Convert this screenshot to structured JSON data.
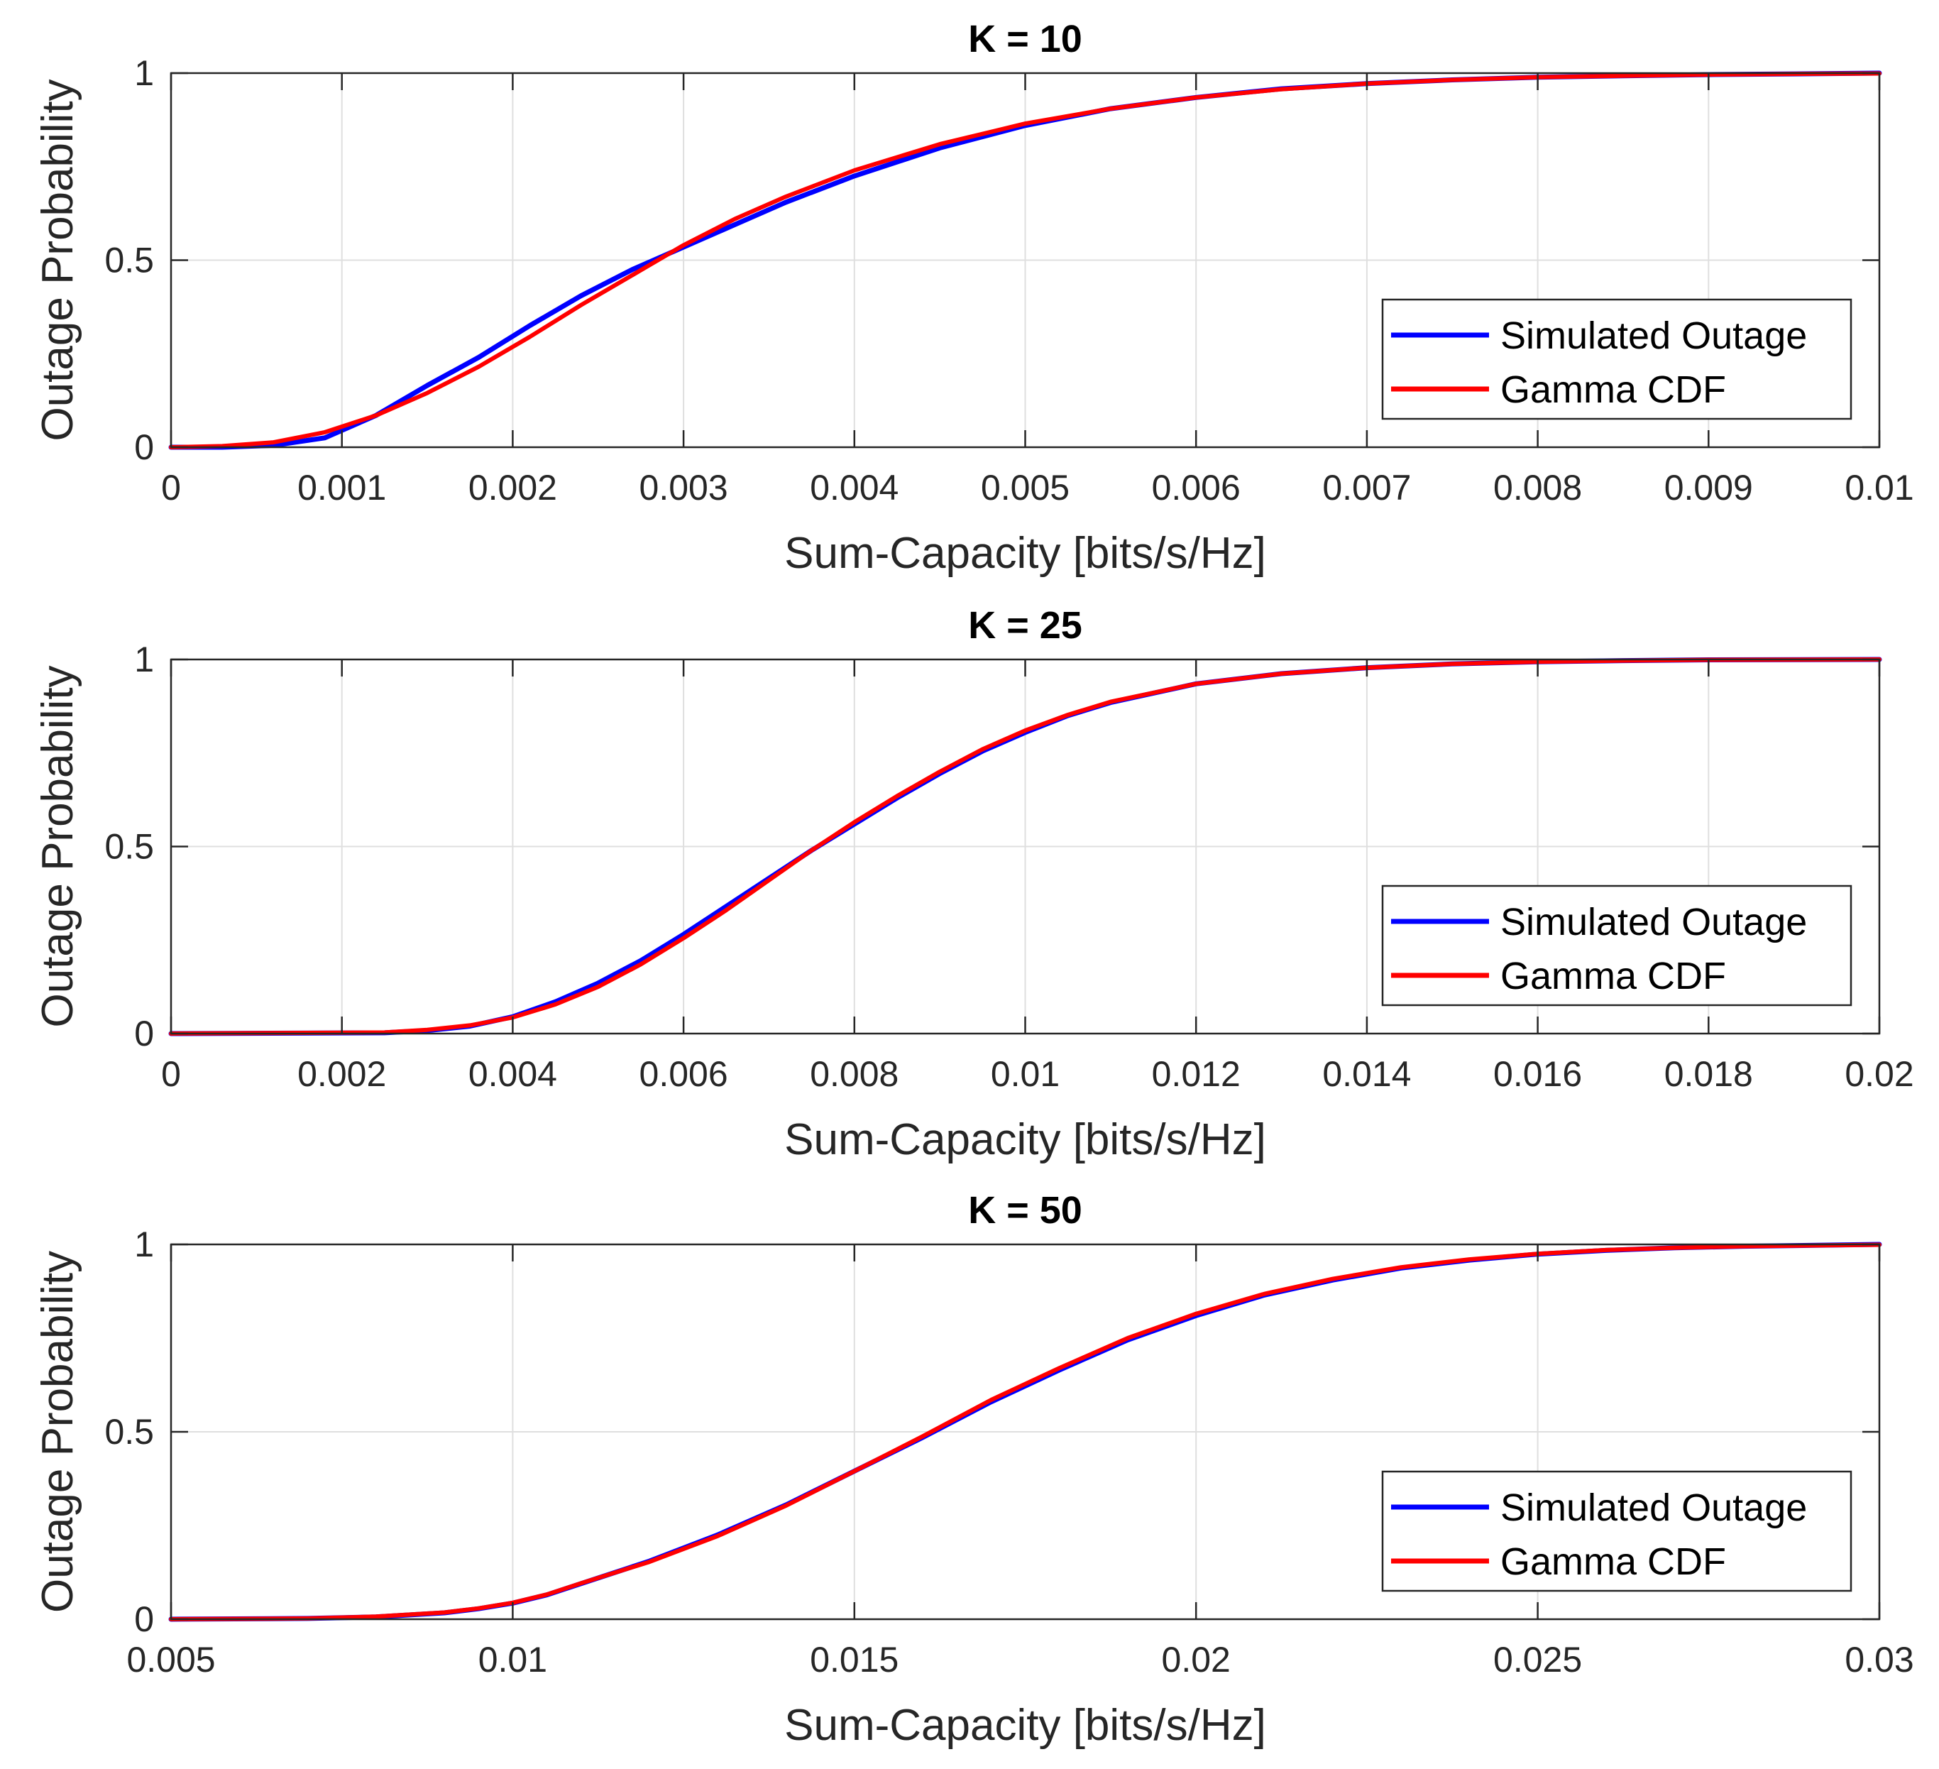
{
  "chart_data": [
    {
      "type": "line",
      "title": "K = 10",
      "xlabel": "Sum-Capacity [bits/s/Hz]",
      "ylabel": "Outage Probability",
      "xlim": [
        0,
        0.01
      ],
      "ylim": [
        0,
        1
      ],
      "xticks": [
        0,
        0.001,
        0.002,
        0.003,
        0.004,
        0.005,
        0.006,
        0.007,
        0.008,
        0.009,
        0.01
      ],
      "xtick_labels": [
        "0",
        "0.001",
        "0.002",
        "0.003",
        "0.004",
        "0.005",
        "0.006",
        "0.007",
        "0.008",
        "0.009",
        "0.01"
      ],
      "yticks": [
        0,
        0.5,
        1
      ],
      "ytick_labels": [
        "0",
        "0.5",
        "1"
      ],
      "grid": true,
      "legend": "lower-right",
      "series": [
        {
          "name": "Simulated Outage",
          "color": "#0000ff",
          "x": [
            0,
            0.0003,
            0.0006,
            0.0009,
            0.0012,
            0.0015,
            0.0018,
            0.0021,
            0.0024,
            0.0027,
            0.003,
            0.0033,
            0.0036,
            0.004,
            0.0045,
            0.005,
            0.0055,
            0.006,
            0.0065,
            0.007,
            0.0075,
            0.008,
            0.0085,
            0.009,
            0.0095,
            0.01
          ],
          "y": [
            0,
            0.0,
            0.005,
            0.025,
            0.085,
            0.165,
            0.24,
            0.325,
            0.405,
            0.475,
            0.535,
            0.595,
            0.655,
            0.725,
            0.8,
            0.86,
            0.905,
            0.935,
            0.958,
            0.972,
            0.982,
            0.989,
            0.993,
            0.996,
            0.998,
            1.0
          ]
        },
        {
          "name": "Gamma CDF",
          "color": "#ff0000",
          "x": [
            0,
            0.0003,
            0.0006,
            0.0009,
            0.0012,
            0.0015,
            0.0018,
            0.0021,
            0.0024,
            0.0027,
            0.003,
            0.0033,
            0.0036,
            0.004,
            0.0045,
            0.005,
            0.0055,
            0.006,
            0.0065,
            0.007,
            0.0075,
            0.008,
            0.0085,
            0.009,
            0.0095,
            0.01
          ],
          "y": [
            0,
            0.003,
            0.013,
            0.04,
            0.085,
            0.145,
            0.215,
            0.295,
            0.38,
            0.46,
            0.54,
            0.61,
            0.67,
            0.74,
            0.81,
            0.865,
            0.905,
            0.935,
            0.957,
            0.972,
            0.982,
            0.989,
            0.993,
            0.996,
            0.998,
            0.999
          ]
        }
      ]
    },
    {
      "type": "line",
      "title": "K = 25",
      "xlabel": "Sum-Capacity [bits/s/Hz]",
      "ylabel": "Outage Probability",
      "xlim": [
        0,
        0.02
      ],
      "ylim": [
        0,
        1
      ],
      "xticks": [
        0,
        0.002,
        0.004,
        0.006,
        0.008,
        0.01,
        0.012,
        0.014,
        0.016,
        0.018,
        0.02
      ],
      "xtick_labels": [
        "0",
        "0.002",
        "0.004",
        "0.006",
        "0.008",
        "0.01",
        "0.012",
        "0.014",
        "0.016",
        "0.018",
        "0.02"
      ],
      "yticks": [
        0,
        0.5,
        1
      ],
      "ytick_labels": [
        "0",
        "0.5",
        "1"
      ],
      "grid": true,
      "legend": "lower-right",
      "series": [
        {
          "name": "Simulated Outage",
          "color": "#0000ff",
          "x": [
            0,
            0.0025,
            0.003,
            0.0035,
            0.004,
            0.0045,
            0.005,
            0.0055,
            0.006,
            0.0065,
            0.007,
            0.0075,
            0.008,
            0.0085,
            0.009,
            0.0095,
            0.01,
            0.0105,
            0.011,
            0.012,
            0.013,
            0.014,
            0.015,
            0.016,
            0.017,
            0.018,
            0.02
          ],
          "y": [
            0,
            0.002,
            0.008,
            0.02,
            0.045,
            0.085,
            0.135,
            0.195,
            0.265,
            0.34,
            0.415,
            0.49,
            0.56,
            0.63,
            0.695,
            0.755,
            0.805,
            0.85,
            0.885,
            0.935,
            0.962,
            0.978,
            0.988,
            0.994,
            0.997,
            0.999,
            1.0
          ]
        },
        {
          "name": "Gamma CDF",
          "color": "#ff0000",
          "x": [
            0,
            0.0025,
            0.003,
            0.0035,
            0.004,
            0.0045,
            0.005,
            0.0055,
            0.006,
            0.0065,
            0.007,
            0.0075,
            0.008,
            0.0085,
            0.009,
            0.0095,
            0.01,
            0.0105,
            0.011,
            0.012,
            0.013,
            0.014,
            0.015,
            0.016,
            0.017,
            0.018,
            0.02
          ],
          "y": [
            0,
            0.003,
            0.01,
            0.022,
            0.043,
            0.078,
            0.125,
            0.185,
            0.255,
            0.33,
            0.41,
            0.49,
            0.565,
            0.635,
            0.7,
            0.76,
            0.81,
            0.852,
            0.887,
            0.935,
            0.962,
            0.978,
            0.988,
            0.994,
            0.997,
            0.999,
            1.0
          ]
        }
      ]
    },
    {
      "type": "line",
      "title": "K = 50",
      "xlabel": "Sum-Capacity [bits/s/Hz]",
      "ylabel": "Outage Probability",
      "xlim": [
        0.005,
        0.03
      ],
      "ylim": [
        0,
        1
      ],
      "xticks": [
        0.005,
        0.01,
        0.015,
        0.02,
        0.025,
        0.03
      ],
      "xtick_labels": [
        "0.005",
        "0.01",
        "0.015",
        "0.02",
        "0.025",
        "0.03"
      ],
      "yticks": [
        0,
        0.5,
        1
      ],
      "ytick_labels": [
        "0",
        "0.5",
        "1"
      ],
      "grid": true,
      "legend": "lower-right",
      "series": [
        {
          "name": "Simulated Outage",
          "color": "#0000ff",
          "x": [
            0.005,
            0.007,
            0.008,
            0.009,
            0.0095,
            0.01,
            0.0105,
            0.011,
            0.012,
            0.013,
            0.014,
            0.015,
            0.016,
            0.017,
            0.018,
            0.019,
            0.02,
            0.021,
            0.022,
            0.023,
            0.024,
            0.025,
            0.026,
            0.027,
            0.028,
            0.03
          ],
          "y": [
            0,
            0.002,
            0.006,
            0.017,
            0.028,
            0.043,
            0.065,
            0.095,
            0.155,
            0.225,
            0.305,
            0.395,
            0.485,
            0.58,
            0.665,
            0.745,
            0.81,
            0.865,
            0.905,
            0.937,
            0.958,
            0.974,
            0.984,
            0.991,
            0.995,
            1.0
          ]
        },
        {
          "name": "Gamma CDF",
          "color": "#ff0000",
          "x": [
            0.005,
            0.007,
            0.008,
            0.009,
            0.0095,
            0.01,
            0.0105,
            0.011,
            0.012,
            0.013,
            0.014,
            0.015,
            0.016,
            0.017,
            0.018,
            0.019,
            0.02,
            0.021,
            0.022,
            0.023,
            0.024,
            0.025,
            0.026,
            0.027,
            0.028,
            0.03
          ],
          "y": [
            0,
            0.002,
            0.007,
            0.018,
            0.029,
            0.044,
            0.066,
            0.096,
            0.153,
            0.222,
            0.303,
            0.395,
            0.488,
            0.585,
            0.67,
            0.75,
            0.815,
            0.868,
            0.908,
            0.939,
            0.96,
            0.975,
            0.985,
            0.991,
            0.995,
            0.999
          ]
        }
      ]
    }
  ]
}
